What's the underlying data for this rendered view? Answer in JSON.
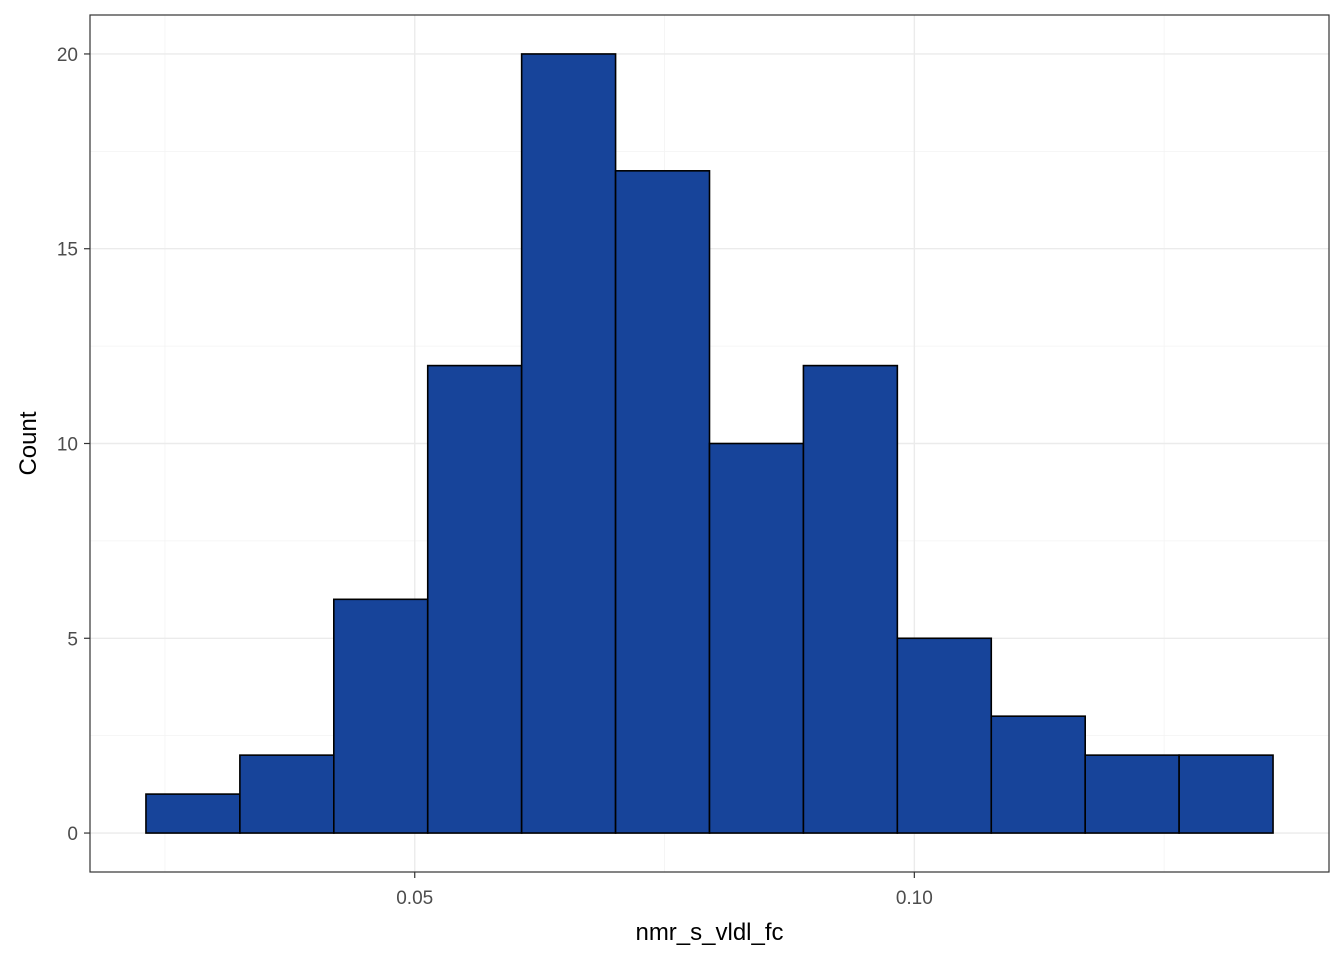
{
  "chart_data": {
    "type": "bar",
    "subtype": "histogram",
    "title": "",
    "xlabel": "nmr_s_vldl_fc",
    "ylabel": "Count",
    "bins": [
      {
        "start": 0.0231,
        "end": 0.0325,
        "count": 1
      },
      {
        "start": 0.0325,
        "end": 0.0419,
        "count": 2
      },
      {
        "start": 0.0419,
        "end": 0.0513,
        "count": 6
      },
      {
        "start": 0.0513,
        "end": 0.0607,
        "count": 12
      },
      {
        "start": 0.0607,
        "end": 0.0701,
        "count": 20
      },
      {
        "start": 0.0701,
        "end": 0.0795,
        "count": 17
      },
      {
        "start": 0.0795,
        "end": 0.0889,
        "count": 10
      },
      {
        "start": 0.0889,
        "end": 0.0983,
        "count": 12
      },
      {
        "start": 0.0983,
        "end": 0.1077,
        "count": 5
      },
      {
        "start": 0.1077,
        "end": 0.1171,
        "count": 3
      },
      {
        "start": 0.1171,
        "end": 0.1265,
        "count": 2
      },
      {
        "start": 0.1265,
        "end": 0.1359,
        "count": 2
      }
    ],
    "xlim": [
      0.0175,
      0.1415
    ],
    "ylim": [
      -1,
      21
    ],
    "x_ticks": [
      0.05,
      0.1
    ],
    "x_tick_labels": [
      "0.05",
      "0.10"
    ],
    "y_ticks": [
      0,
      5,
      10,
      15,
      20
    ],
    "y_tick_labels": [
      "0",
      "5",
      "10",
      "15",
      "20"
    ],
    "grid": true,
    "legend": "none",
    "bar_color": "#17449A",
    "bar_border_color": "#000000"
  }
}
